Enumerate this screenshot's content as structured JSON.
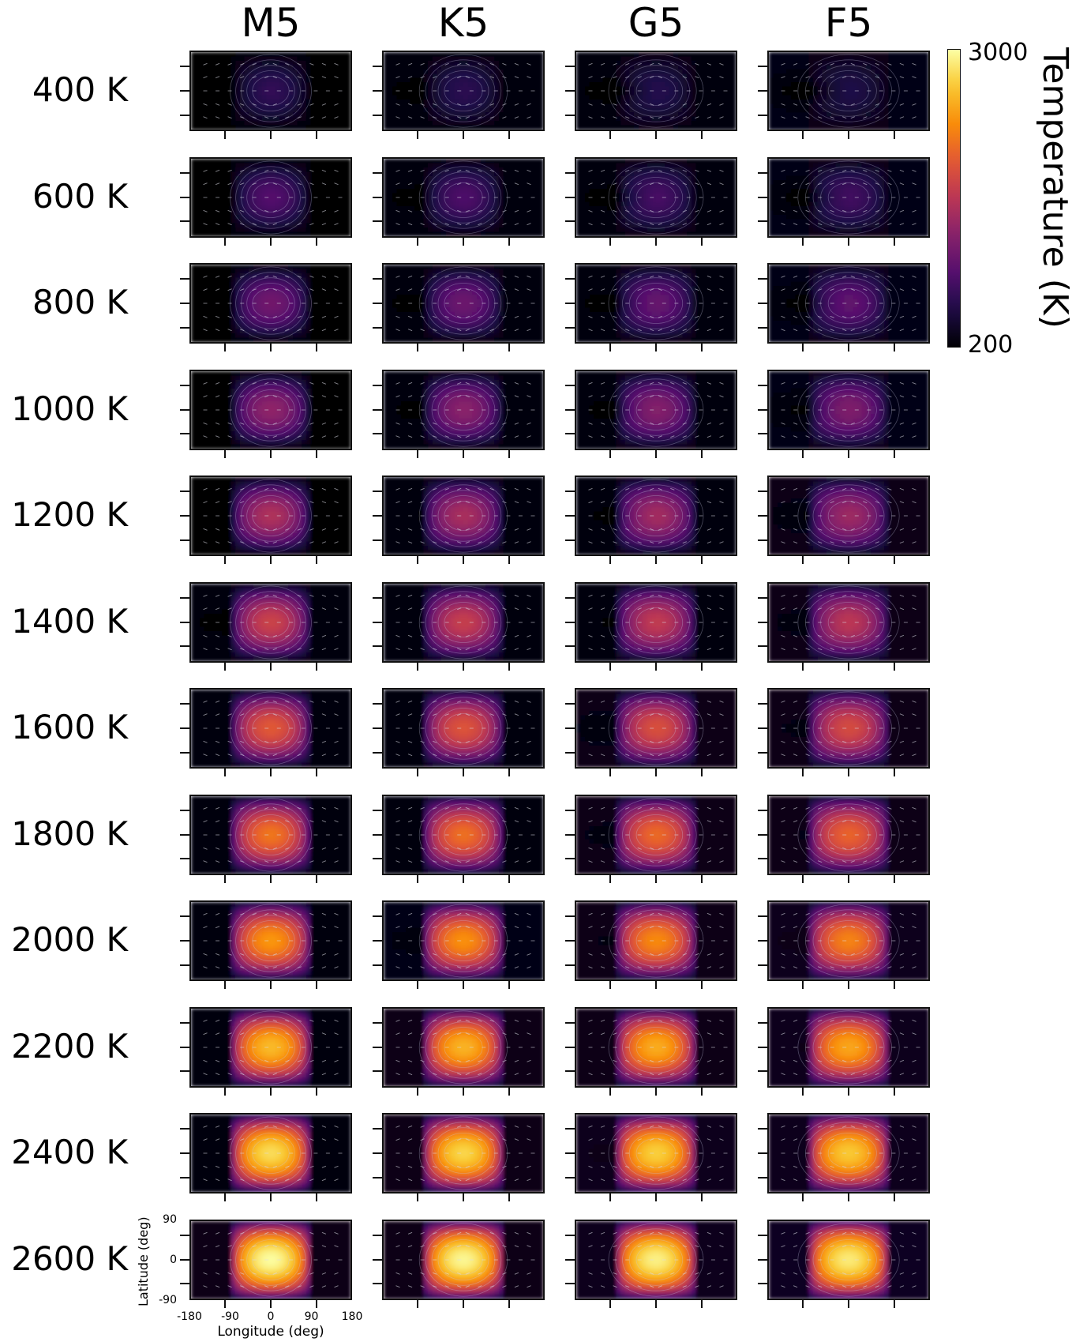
{
  "chart_data": {
    "type": "heatmap",
    "columns": [
      "M5",
      "K5",
      "G5",
      "F5"
    ],
    "rows": [
      "400 K",
      "600 K",
      "800 K",
      "1000 K",
      "1200 K",
      "1400 K",
      "1600 K",
      "1800 K",
      "2000 K",
      "2200 K",
      "2400 K",
      "2600 K"
    ],
    "equilibrium_temperatures": [
      400,
      600,
      800,
      1000,
      1200,
      1400,
      1600,
      1800,
      2000,
      2200,
      2400,
      2600
    ],
    "colorbar": {
      "label": "Temperature (K)",
      "min": 200,
      "max": 3000,
      "min_label": "200",
      "max_label": "3000",
      "colormap": "inferno"
    },
    "xlabel": "Longitude (deg)",
    "ylabel": "Latitude (deg)",
    "xticks": [
      "-180",
      "-90",
      "0",
      "90",
      "180"
    ],
    "yticks": [
      "90",
      "0",
      "-90"
    ],
    "xlim": [
      -180,
      180
    ],
    "ylim": [
      -90,
      90
    ],
    "grid": false
  }
}
